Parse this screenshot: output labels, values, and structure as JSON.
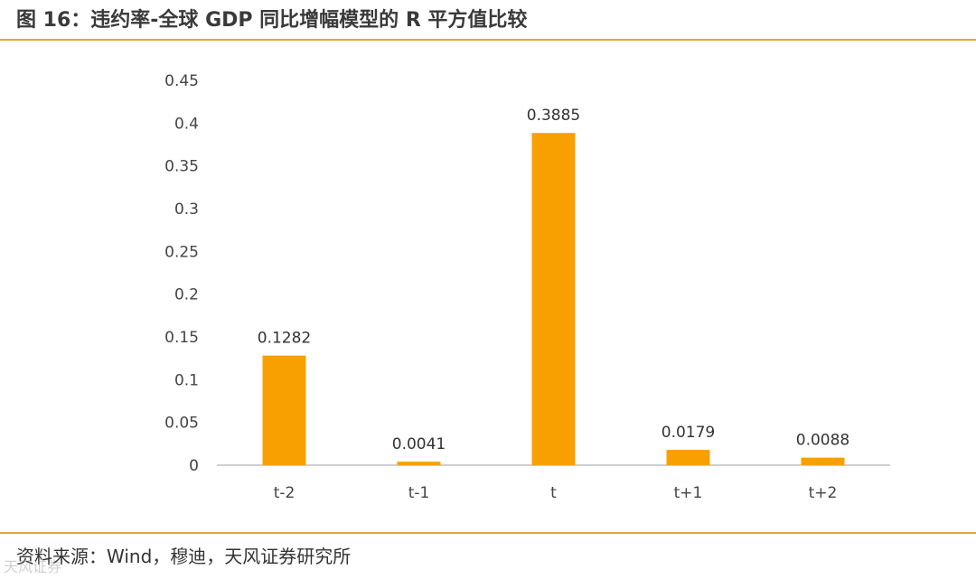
{
  "header": {
    "title": "图 16：违约率-全球 GDP 同比增幅模型的 R 平方值比较"
  },
  "footer": {
    "source": "资料来源：Wind，穆迪，天风证券研究所",
    "watermark": "天风证券"
  },
  "colors": {
    "bar": "#f7a000",
    "rule": "#e8a33c",
    "axis": "#bfbfbf"
  },
  "chart_data": {
    "type": "bar",
    "title": "",
    "xlabel": "",
    "ylabel": "",
    "categories": [
      "t-2",
      "t-1",
      "t",
      "t+1",
      "t+2"
    ],
    "values": [
      0.1282,
      0.0041,
      0.3885,
      0.0179,
      0.0088
    ],
    "data_labels": [
      "0.1282",
      "0.0041",
      "0.3885",
      "0.0179",
      "0.0088"
    ],
    "ylim": [
      0,
      0.45
    ],
    "yticks": [
      0,
      0.05,
      0.1,
      0.15,
      0.2,
      0.25,
      0.3,
      0.35,
      0.4,
      0.45
    ],
    "ytick_labels": [
      "0",
      "0.05",
      "0.1",
      "0.15",
      "0.2",
      "0.25",
      "0.3",
      "0.35",
      "0.4",
      "0.45"
    ],
    "grid": false,
    "legend": "none"
  }
}
